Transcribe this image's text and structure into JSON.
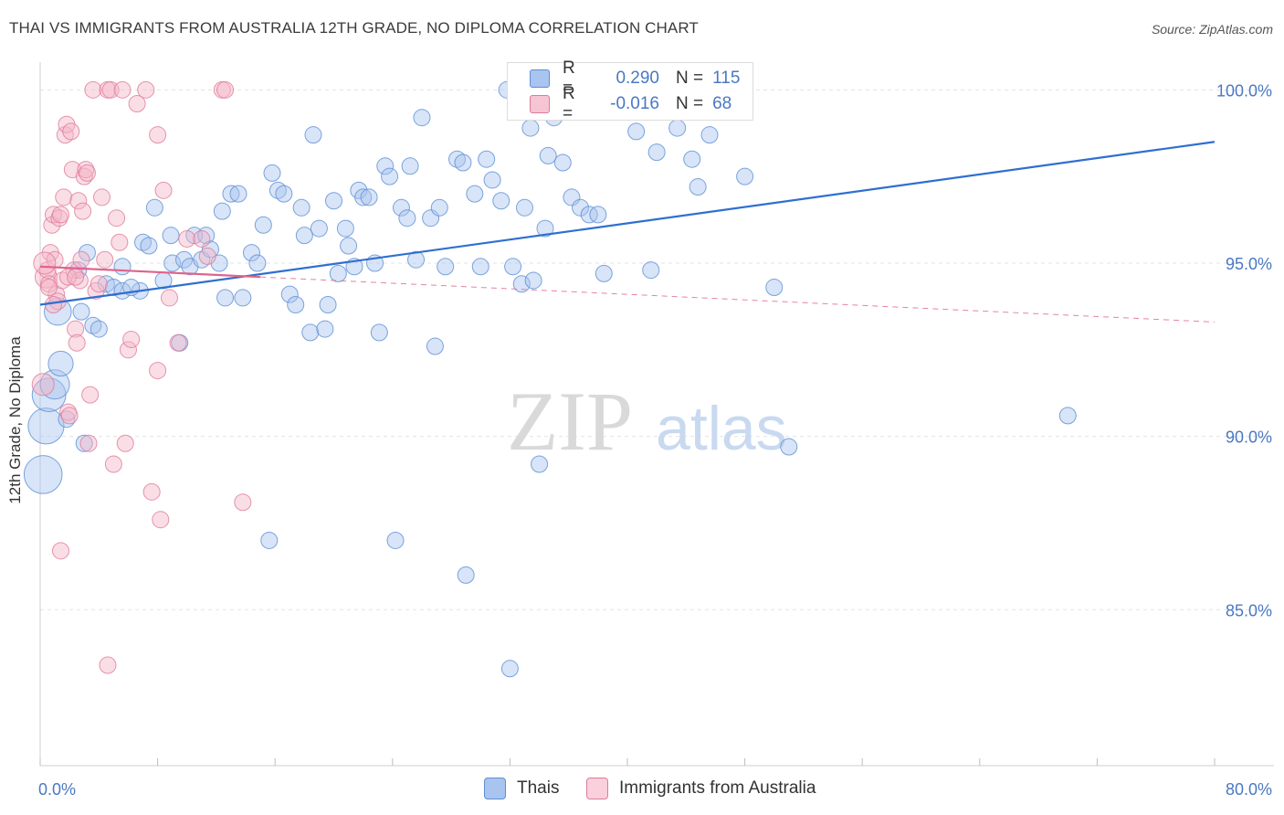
{
  "title": "THAI VS IMMIGRANTS FROM AUSTRALIA 12TH GRADE, NO DIPLOMA CORRELATION CHART",
  "source": "Source: ZipAtlas.com",
  "watermark": {
    "zip": "ZIP",
    "atlas": "atlas"
  },
  "legend": {
    "r_label": "R =",
    "n_label": "N =",
    "rows": [
      {
        "r": "0.290",
        "n": "115",
        "color": "#a9c4ee"
      },
      {
        "r": "-0.016",
        "n": "68",
        "color": "#f5b6c8"
      }
    ]
  },
  "bottom_legend": [
    {
      "label": "Thais",
      "color": "#a9c4ee"
    },
    {
      "label": "Immigrants from Australia",
      "color": "#f5b6c8"
    }
  ],
  "chart_data": {
    "type": "scatter",
    "title": "THAI VS IMMIGRANTS FROM AUSTRALIA 12TH GRADE, NO DIPLOMA CORRELATION CHART",
    "xlabel": "",
    "ylabel": "12th Grade, No Diploma",
    "xlim": [
      0,
      80
    ],
    "ylim": [
      80.5,
      100.8
    ],
    "x_tick_labels": [
      "0.0%",
      "80.0%"
    ],
    "y_ticks": [
      85,
      90,
      95,
      100
    ],
    "y_tick_labels": [
      "85.0%",
      "90.0%",
      "95.0%",
      "100.0%"
    ],
    "grid": true,
    "legend_position": "top-center",
    "series": [
      {
        "name": "Thais",
        "color": "#a9c4ee",
        "stroke": "#5b8fd6",
        "trend": {
          "x": [
            0,
            80
          ],
          "y": [
            93.8,
            98.5
          ],
          "color": "#2f6fd0"
        },
        "points": [
          [
            0.2,
            88.9
          ],
          [
            0.4,
            90.3
          ],
          [
            0.6,
            91.2
          ],
          [
            1.0,
            91.5
          ],
          [
            1.4,
            92.1
          ],
          [
            1.2,
            93.6
          ],
          [
            2.8,
            93.6
          ],
          [
            3.6,
            93.2
          ],
          [
            1.8,
            90.5
          ],
          [
            3.0,
            89.8
          ],
          [
            4.5,
            94.4
          ],
          [
            5.0,
            94.3
          ],
          [
            5.6,
            94.9
          ],
          [
            6.8,
            94.2
          ],
          [
            7.0,
            95.6
          ],
          [
            7.4,
            95.5
          ],
          [
            7.8,
            96.6
          ],
          [
            8.4,
            94.5
          ],
          [
            8.9,
            95.8
          ],
          [
            9.0,
            95.0
          ],
          [
            9.5,
            92.7
          ],
          [
            9.8,
            95.1
          ],
          [
            10.2,
            94.9
          ],
          [
            10.5,
            95.8
          ],
          [
            11.0,
            95.1
          ],
          [
            11.3,
            95.8
          ],
          [
            11.6,
            95.4
          ],
          [
            12.2,
            95.0
          ],
          [
            12.4,
            96.5
          ],
          [
            12.6,
            94.0
          ],
          [
            13.0,
            97.0
          ],
          [
            13.5,
            97.0
          ],
          [
            13.8,
            94.0
          ],
          [
            14.4,
            95.3
          ],
          [
            14.8,
            95.0
          ],
          [
            15.2,
            96.1
          ],
          [
            15.6,
            87.0
          ],
          [
            15.8,
            97.6
          ],
          [
            16.2,
            97.1
          ],
          [
            16.6,
            97.0
          ],
          [
            17.0,
            94.1
          ],
          [
            17.4,
            93.8
          ],
          [
            17.8,
            96.6
          ],
          [
            18.0,
            95.8
          ],
          [
            18.4,
            93.0
          ],
          [
            18.6,
            98.7
          ],
          [
            19.0,
            96.0
          ],
          [
            19.4,
            93.1
          ],
          [
            19.6,
            93.8
          ],
          [
            20.0,
            96.8
          ],
          [
            20.3,
            94.7
          ],
          [
            20.8,
            96.0
          ],
          [
            21.0,
            95.5
          ],
          [
            21.4,
            94.9
          ],
          [
            21.7,
            97.1
          ],
          [
            22.0,
            96.9
          ],
          [
            22.4,
            96.9
          ],
          [
            22.8,
            95.0
          ],
          [
            23.1,
            93.0
          ],
          [
            23.5,
            97.8
          ],
          [
            23.8,
            97.5
          ],
          [
            24.2,
            87.0
          ],
          [
            24.6,
            96.6
          ],
          [
            25.0,
            96.3
          ],
          [
            25.2,
            97.8
          ],
          [
            25.6,
            95.1
          ],
          [
            26.0,
            99.2
          ],
          [
            26.6,
            96.3
          ],
          [
            26.9,
            92.6
          ],
          [
            27.2,
            96.6
          ],
          [
            27.6,
            94.9
          ],
          [
            28.4,
            98.0
          ],
          [
            28.8,
            97.9
          ],
          [
            29.0,
            86.0
          ],
          [
            29.6,
            97.0
          ],
          [
            30.0,
            94.9
          ],
          [
            30.4,
            98.0
          ],
          [
            30.8,
            97.4
          ],
          [
            31.4,
            96.8
          ],
          [
            31.8,
            100.0
          ],
          [
            32.2,
            94.9
          ],
          [
            32.8,
            94.4
          ],
          [
            33.0,
            96.6
          ],
          [
            33.4,
            98.9
          ],
          [
            33.6,
            94.5
          ],
          [
            34.0,
            89.2
          ],
          [
            34.4,
            96.0
          ],
          [
            34.6,
            98.1
          ],
          [
            35.0,
            99.2
          ],
          [
            35.6,
            97.9
          ],
          [
            36.2,
            96.9
          ],
          [
            36.8,
            96.6
          ],
          [
            37.4,
            96.4
          ],
          [
            38.0,
            96.4
          ],
          [
            38.4,
            94.7
          ],
          [
            39.0,
            100.0
          ],
          [
            39.6,
            100.0
          ],
          [
            40.6,
            98.8
          ],
          [
            41.6,
            94.8
          ],
          [
            42.0,
            98.2
          ],
          [
            43.4,
            98.9
          ],
          [
            44.4,
            98.0
          ],
          [
            44.8,
            97.2
          ],
          [
            45.6,
            98.7
          ],
          [
            46.6,
            100.0
          ],
          [
            48.0,
            97.5
          ],
          [
            50.0,
            94.3
          ],
          [
            51.0,
            89.7
          ],
          [
            70.0,
            90.6
          ],
          [
            32.0,
            83.3
          ],
          [
            5.6,
            94.2
          ],
          [
            6.2,
            94.3
          ],
          [
            2.6,
            94.8
          ],
          [
            3.2,
            95.3
          ],
          [
            4.0,
            93.1
          ]
        ]
      },
      {
        "name": "Immigrants from Australia",
        "color": "#f5b6c8",
        "stroke": "#e07a9a",
        "trend": {
          "x": [
            0,
            15
          ],
          "y": [
            94.9,
            94.6
          ],
          "color": "#e0638c",
          "dashed_extension": {
            "x": [
              15,
              80
            ],
            "y": [
              94.6,
              93.3
            ]
          }
        },
        "points": [
          [
            0.2,
            91.5
          ],
          [
            0.4,
            94.6
          ],
          [
            0.5,
            94.8
          ],
          [
            0.6,
            94.4
          ],
          [
            0.7,
            95.3
          ],
          [
            0.8,
            96.1
          ],
          [
            0.9,
            96.4
          ],
          [
            1.0,
            95.1
          ],
          [
            1.1,
            94.1
          ],
          [
            1.2,
            93.9
          ],
          [
            1.3,
            96.3
          ],
          [
            1.4,
            96.4
          ],
          [
            1.5,
            94.5
          ],
          [
            1.6,
            96.9
          ],
          [
            1.7,
            98.7
          ],
          [
            1.8,
            99.0
          ],
          [
            1.9,
            90.7
          ],
          [
            2.0,
            90.6
          ],
          [
            2.1,
            98.8
          ],
          [
            2.2,
            97.7
          ],
          [
            2.3,
            94.8
          ],
          [
            2.4,
            93.1
          ],
          [
            2.5,
            92.7
          ],
          [
            2.6,
            96.8
          ],
          [
            2.7,
            94.5
          ],
          [
            2.8,
            95.1
          ],
          [
            2.9,
            96.5
          ],
          [
            3.0,
            97.5
          ],
          [
            3.1,
            97.7
          ],
          [
            3.2,
            97.6
          ],
          [
            3.3,
            89.8
          ],
          [
            3.4,
            91.2
          ],
          [
            3.6,
            100.0
          ],
          [
            3.8,
            94.2
          ],
          [
            4.0,
            94.4
          ],
          [
            4.2,
            96.9
          ],
          [
            4.4,
            95.1
          ],
          [
            4.6,
            100.0
          ],
          [
            4.8,
            100.0
          ],
          [
            5.0,
            89.2
          ],
          [
            5.2,
            96.3
          ],
          [
            5.4,
            95.6
          ],
          [
            5.6,
            100.0
          ],
          [
            5.8,
            89.8
          ],
          [
            6.0,
            92.5
          ],
          [
            6.2,
            92.8
          ],
          [
            6.6,
            99.6
          ],
          [
            7.2,
            100.0
          ],
          [
            7.6,
            88.4
          ],
          [
            8.0,
            91.9
          ],
          [
            8.2,
            87.6
          ],
          [
            8.4,
            97.1
          ],
          [
            8.8,
            94.0
          ],
          [
            9.4,
            92.7
          ],
          [
            10.0,
            95.7
          ],
          [
            11.0,
            95.7
          ],
          [
            11.4,
            95.2
          ],
          [
            12.4,
            100.0
          ],
          [
            12.6,
            100.0
          ],
          [
            13.8,
            88.1
          ],
          [
            1.4,
            86.7
          ],
          [
            4.6,
            83.4
          ],
          [
            0.3,
            95.0
          ],
          [
            0.6,
            94.3
          ],
          [
            0.9,
            93.8
          ],
          [
            1.9,
            94.6
          ],
          [
            8.0,
            98.7
          ],
          [
            2.4,
            94.6
          ]
        ]
      }
    ]
  }
}
